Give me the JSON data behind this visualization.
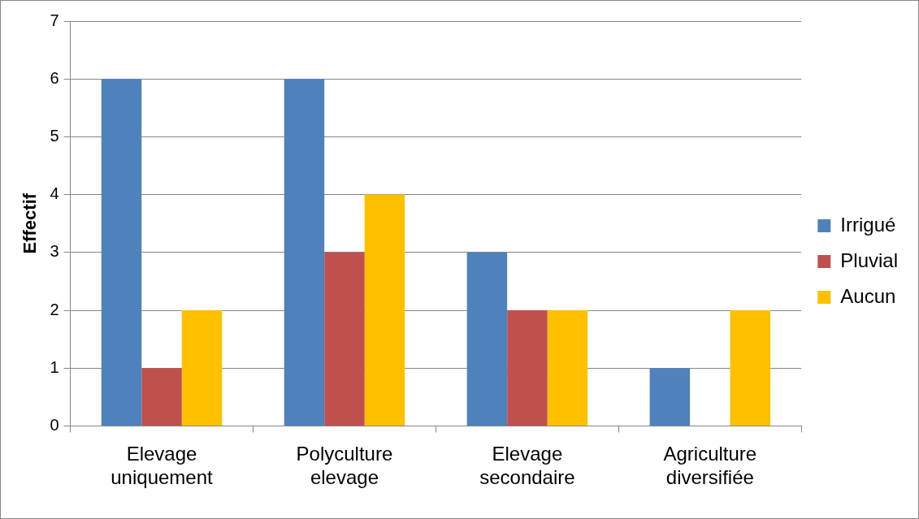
{
  "chart_data": {
    "type": "bar",
    "ylabel": "Effectif",
    "categories": [
      "Elevage uniquement",
      "Polyculture elevage",
      "Elevage secondaire",
      "Agriculture diversifiée"
    ],
    "series": [
      {
        "name": "Irrigué",
        "color": "#4f81bd",
        "values": [
          6,
          6,
          3,
          1
        ]
      },
      {
        "name": "Pluvial",
        "color": "#c0504d",
        "values": [
          1,
          3,
          2,
          0
        ]
      },
      {
        "name": "Aucun",
        "color": "#ffc000",
        "values": [
          2,
          4,
          2,
          2
        ]
      }
    ],
    "ylim": [
      0,
      7
    ],
    "yticks": [
      0,
      1,
      2,
      3,
      4,
      5,
      6,
      7
    ],
    "grid": "y",
    "legend": "right"
  }
}
